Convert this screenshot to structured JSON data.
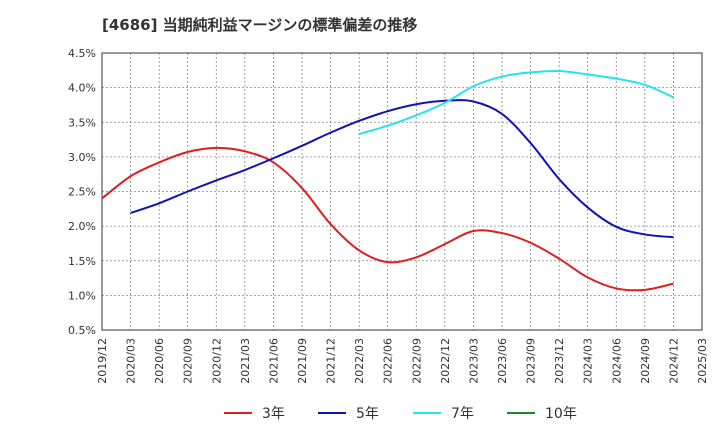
{
  "chart_data": {
    "type": "line",
    "title": "[4686]  当期純利益マージンの標準偏差の推移",
    "xlabel": "",
    "ylabel": "",
    "x_ticks": [
      "2019/12",
      "2020/03",
      "2020/06",
      "2020/09",
      "2020/12",
      "2021/03",
      "2021/06",
      "2021/09",
      "2021/12",
      "2022/03",
      "2022/06",
      "2022/09",
      "2022/12",
      "2023/03",
      "2023/06",
      "2023/09",
      "2023/12",
      "2024/03",
      "2024/06",
      "2024/09",
      "2024/12",
      "2025/03"
    ],
    "y_ticks": [
      "0.5%",
      "1.0%",
      "1.5%",
      "2.0%",
      "2.5%",
      "3.0%",
      "3.5%",
      "4.0%",
      "4.5%"
    ],
    "ylim": [
      0.5,
      4.5
    ],
    "grid": true,
    "legend_position": "bottom",
    "series": [
      {
        "name": "3年",
        "color": "#dd1f1f",
        "x": [
          "2019/12",
          "2020/03",
          "2020/06",
          "2020/09",
          "2020/12",
          "2021/03",
          "2021/06",
          "2021/09",
          "2021/12",
          "2022/03",
          "2022/06",
          "2022/09",
          "2022/12",
          "2023/03",
          "2023/06",
          "2023/09",
          "2023/12",
          "2024/03",
          "2024/06",
          "2024/09",
          "2024/12"
        ],
        "values": [
          2.4,
          2.72,
          2.92,
          3.07,
          3.13,
          3.08,
          2.92,
          2.55,
          2.03,
          1.65,
          1.48,
          1.55,
          1.74,
          1.93,
          1.9,
          1.76,
          1.53,
          1.26,
          1.1,
          1.08,
          1.17
        ]
      },
      {
        "name": "5年",
        "color": "#1212b4",
        "x": [
          "2020/03",
          "2020/06",
          "2020/09",
          "2020/12",
          "2021/03",
          "2021/06",
          "2021/09",
          "2021/12",
          "2022/03",
          "2022/06",
          "2022/09",
          "2022/12",
          "2023/03",
          "2023/06",
          "2023/09",
          "2023/12",
          "2024/03",
          "2024/06",
          "2024/09",
          "2024/12"
        ],
        "values": [
          2.19,
          2.33,
          2.5,
          2.66,
          2.81,
          2.98,
          3.16,
          3.35,
          3.52,
          3.66,
          3.76,
          3.81,
          3.8,
          3.62,
          3.2,
          2.68,
          2.27,
          1.99,
          1.88,
          1.84
        ]
      },
      {
        "name": "7年",
        "color": "#22e4ee",
        "x": [
          "2022/03",
          "2022/06",
          "2022/09",
          "2022/12",
          "2023/03",
          "2023/06",
          "2023/09",
          "2023/12",
          "2024/03",
          "2024/06",
          "2024/09",
          "2024/12"
        ],
        "values": [
          3.33,
          3.45,
          3.6,
          3.78,
          4.02,
          4.16,
          4.22,
          4.24,
          4.19,
          4.13,
          4.04,
          3.86
        ]
      },
      {
        "name": "10年",
        "color": "#1e8a1e",
        "x": [],
        "values": []
      }
    ]
  }
}
